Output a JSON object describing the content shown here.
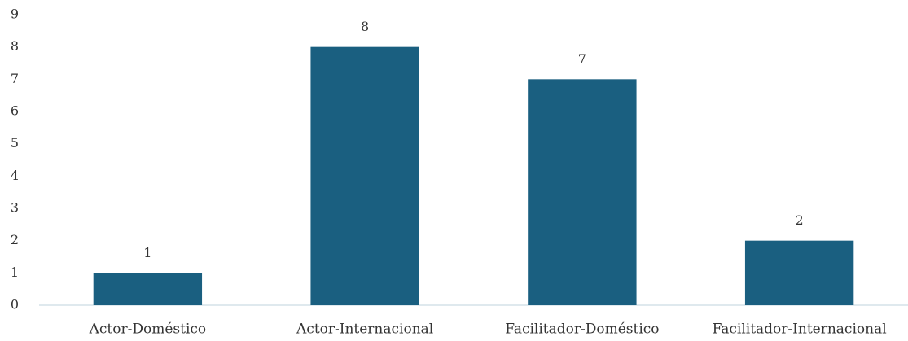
{
  "chart_data": {
    "type": "bar",
    "categories": [
      "Actor-Doméstico",
      "Actor-Internacional",
      "Facilitador-Doméstico",
      "Facilitador-Internacional"
    ],
    "values": [
      1,
      8,
      7,
      2
    ],
    "color": "#1a5f80",
    "ylim": [
      0,
      9
    ],
    "yticks": [
      0,
      1,
      2,
      3,
      4,
      5,
      6,
      7,
      8,
      9
    ],
    "grid": false,
    "data_labels": true
  }
}
